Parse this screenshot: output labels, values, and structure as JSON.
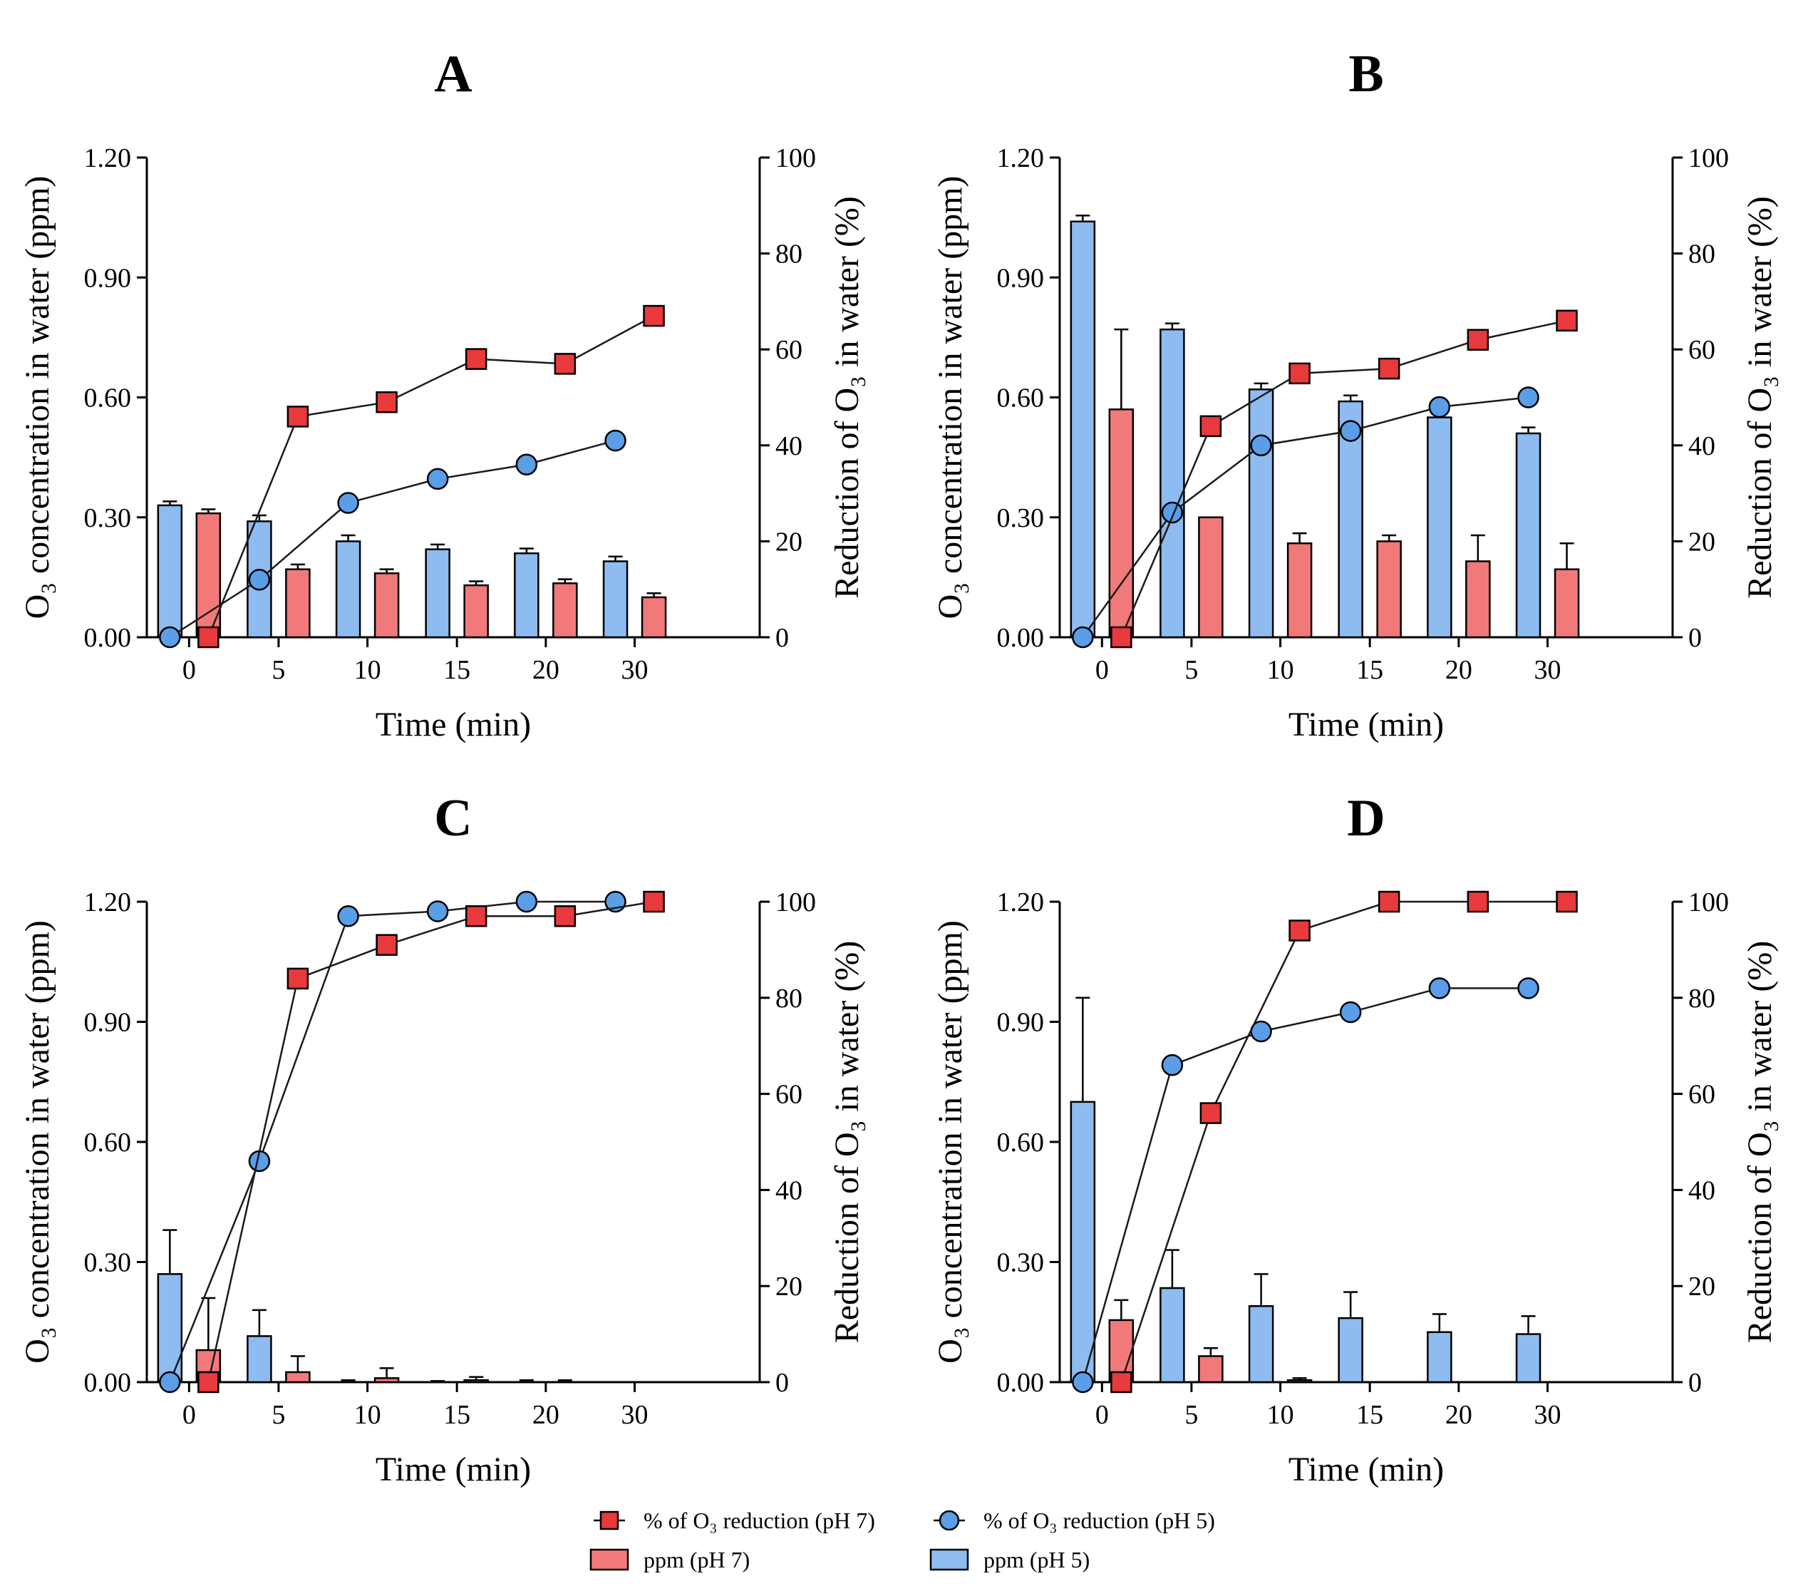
{
  "figure": {
    "colors": {
      "pH7": "#f2797a",
      "pH5": "#8ebbf0",
      "pH7_marker": "#e8393c",
      "pH5_marker": "#5a9ee8",
      "line": "#1a1a1a"
    },
    "legend": [
      {
        "key": "pct7",
        "text": "% of O₃ reduction (pH 7)",
        "symbol": "square-line"
      },
      {
        "key": "pct5",
        "text": "% of O₃ reduction (pH 5)",
        "symbol": "circle-line"
      },
      {
        "key": "ppm7",
        "text": "ppm (pH 7)",
        "symbol": "bar-pH7"
      },
      {
        "key": "ppm5",
        "text": "ppm (pH 5)",
        "symbol": "bar-pH5"
      }
    ]
  },
  "chart_data": [
    {
      "type": "bar+line",
      "title": "A",
      "xlabel": "Time (min)",
      "ylabel_left": "O₃ concentration in water (ppm)",
      "ylabel_right": "Reduction of O₃ in water (%)",
      "categories": [
        "0",
        "5",
        "10",
        "15",
        "20",
        "30"
      ],
      "y_left_ticks": [
        "0.00",
        "0.30",
        "0.60",
        "0.90",
        "1.20"
      ],
      "y_left_range": [
        0,
        1.2
      ],
      "y_right_ticks": [
        "0",
        "20",
        "40",
        "60",
        "80",
        "100"
      ],
      "y_right_range": [
        0,
        100
      ],
      "series": [
        {
          "name": "ppm (pH 5)",
          "kind": "bar",
          "values": [
            0.33,
            0.29,
            0.24,
            0.22,
            0.21,
            0.19
          ],
          "errors": [
            0.01,
            0.015,
            0.015,
            0.012,
            0.012,
            0.012
          ]
        },
        {
          "name": "ppm (pH 7)",
          "kind": "bar",
          "values": [
            0.31,
            0.17,
            0.16,
            0.13,
            0.135,
            0.1
          ],
          "errors": [
            0.01,
            0.012,
            0.01,
            0.01,
            0.01,
            0.01
          ]
        },
        {
          "name": "% of O₃ reduction (pH 5)",
          "kind": "line",
          "values": [
            0,
            12,
            28,
            33,
            36,
            41
          ]
        },
        {
          "name": "% of O₃ reduction (pH 7)",
          "kind": "line",
          "values": [
            0,
            46,
            49,
            58,
            57,
            67
          ]
        }
      ]
    },
    {
      "type": "bar+line",
      "title": "B",
      "xlabel": "Time (min)",
      "ylabel_left": "O₃ concentration in water (ppm)",
      "ylabel_right": "Reduction of O₃ in water (%)",
      "categories": [
        "0",
        "5",
        "10",
        "15",
        "20",
        "30"
      ],
      "y_left_ticks": [
        "0.00",
        "0.30",
        "0.60",
        "0.90",
        "1.20"
      ],
      "y_left_range": [
        0,
        1.2
      ],
      "y_right_ticks": [
        "0",
        "20",
        "40",
        "60",
        "80",
        "100"
      ],
      "y_right_range": [
        0,
        100
      ],
      "series": [
        {
          "name": "ppm (pH 5)",
          "kind": "bar",
          "values": [
            1.04,
            0.77,
            0.62,
            0.59,
            0.55,
            0.51
          ],
          "errors": [
            0.015,
            0.015,
            0.015,
            0.015,
            0.0,
            0.015
          ]
        },
        {
          "name": "ppm (pH 7)",
          "kind": "bar",
          "values": [
            0.57,
            0.3,
            0.235,
            0.24,
            0.19,
            0.17
          ],
          "errors": [
            0.2,
            0.0,
            0.025,
            0.015,
            0.065,
            0.065
          ]
        },
        {
          "name": "% of O₃ reduction (pH 5)",
          "kind": "line",
          "values": [
            0,
            26,
            40,
            43,
            48,
            50
          ]
        },
        {
          "name": "% of O₃ reduction (pH 7)",
          "kind": "line",
          "values": [
            0,
            44,
            55,
            56,
            62,
            66
          ]
        }
      ]
    },
    {
      "type": "bar+line",
      "title": "C",
      "xlabel": "Time (min)",
      "ylabel_left": "O₃ concentration in water (ppm)",
      "ylabel_right": "Reduction of O₃ in water (%)",
      "categories": [
        "0",
        "5",
        "10",
        "15",
        "20",
        "30"
      ],
      "y_left_ticks": [
        "0.00",
        "0.30",
        "0.60",
        "0.90",
        "1.20"
      ],
      "y_left_range": [
        0,
        1.2
      ],
      "y_right_ticks": [
        "0",
        "20",
        "40",
        "60",
        "80",
        "100"
      ],
      "y_right_range": [
        0,
        100
      ],
      "series": [
        {
          "name": "ppm (pH 5)",
          "kind": "bar",
          "values": [
            0.27,
            0.115,
            0.0,
            0.0,
            0.0,
            0.0
          ],
          "errors": [
            0.11,
            0.065,
            0.005,
            0.003,
            0.005,
            0.0
          ]
        },
        {
          "name": "ppm (pH 7)",
          "kind": "bar",
          "values": [
            0.08,
            0.025,
            0.01,
            0.005,
            0.0,
            0.0
          ],
          "errors": [
            0.13,
            0.04,
            0.025,
            0.008,
            0.005,
            0.0
          ]
        },
        {
          "name": "% of O₃ reduction (pH 5)",
          "kind": "line",
          "values": [
            0,
            46,
            97,
            98,
            100,
            100
          ]
        },
        {
          "name": "% of O₃ reduction (pH 7)",
          "kind": "line",
          "values": [
            0,
            84,
            91,
            97,
            97,
            100
          ]
        }
      ]
    },
    {
      "type": "bar+line",
      "title": "D",
      "xlabel": "Time (min)",
      "ylabel_left": "O₃ concentration in water (ppm)",
      "ylabel_right": "Reduction of O₃ in water (%)",
      "categories": [
        "0",
        "5",
        "10",
        "15",
        "20",
        "30"
      ],
      "y_left_ticks": [
        "0.00",
        "0.30",
        "0.60",
        "0.90",
        "1.20"
      ],
      "y_left_range": [
        0,
        1.2
      ],
      "y_right_ticks": [
        "0",
        "20",
        "40",
        "60",
        "80",
        "100"
      ],
      "y_right_range": [
        0,
        100
      ],
      "series": [
        {
          "name": "ppm (pH 5)",
          "kind": "bar",
          "values": [
            0.7,
            0.235,
            0.19,
            0.16,
            0.125,
            0.12
          ],
          "errors": [
            0.26,
            0.095,
            0.08,
            0.065,
            0.045,
            0.045
          ]
        },
        {
          "name": "ppm (pH 7)",
          "kind": "bar",
          "values": [
            0.155,
            0.065,
            0.005,
            0.0,
            0.0,
            0.0
          ],
          "errors": [
            0.05,
            0.02,
            0.005,
            0.0,
            0.0,
            0.0
          ]
        },
        {
          "name": "% of O₃ reduction (pH 5)",
          "kind": "line",
          "values": [
            0,
            66,
            73,
            77,
            82,
            82
          ]
        },
        {
          "name": "% of O₃ reduction (pH 7)",
          "kind": "line",
          "values": [
            0,
            56,
            94,
            100,
            100,
            100
          ]
        }
      ]
    }
  ]
}
